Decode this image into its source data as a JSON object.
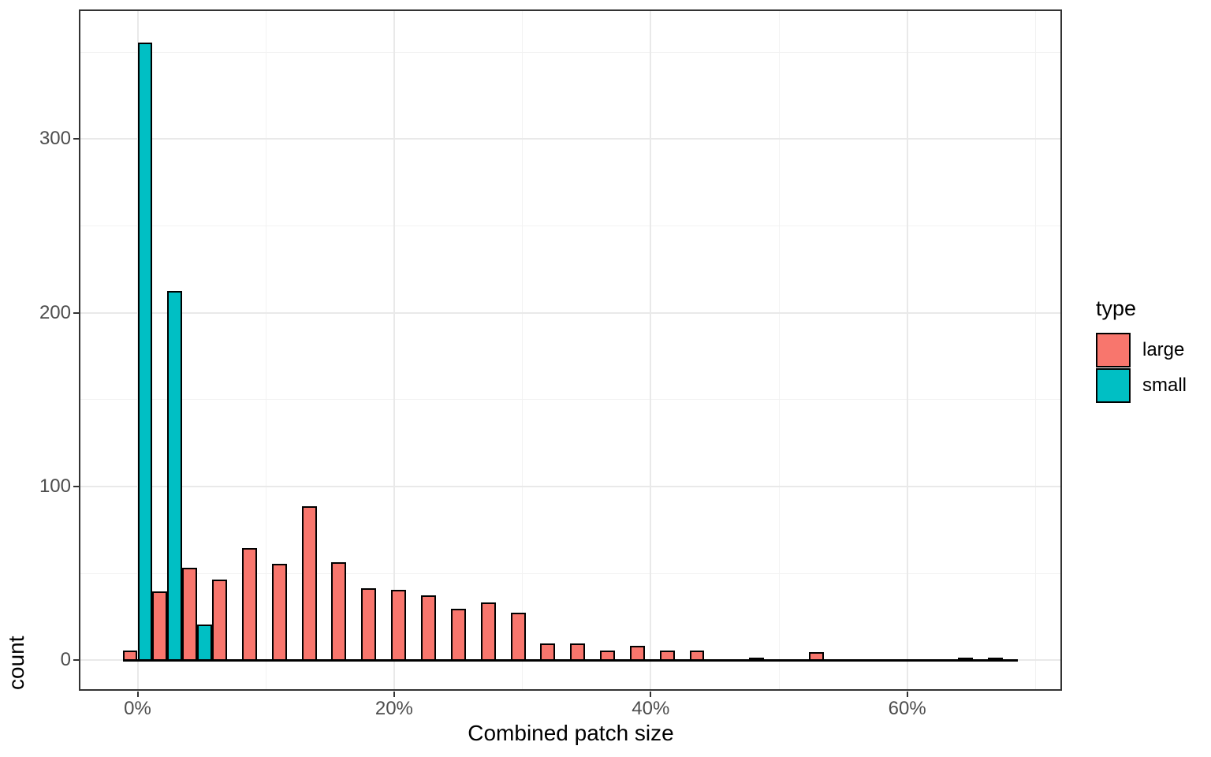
{
  "chart_data": {
    "type": "bar",
    "subtype": "dodged-histogram",
    "title": "",
    "xlabel": "Combined patch size",
    "ylabel": "count",
    "grid": "major+minor",
    "legend": {
      "title": "type",
      "position": "right",
      "entries": [
        {
          "label": "large",
          "color": "#F8766D"
        },
        {
          "label": "small",
          "color": "#00BFC4"
        }
      ]
    },
    "axes": {
      "x_ticks": [
        {
          "value": 0,
          "label": "0%"
        },
        {
          "value": 20,
          "label": "20%"
        },
        {
          "value": 40,
          "label": "40%"
        },
        {
          "value": 60,
          "label": "60%"
        }
      ],
      "x_minor_ticks": [
        10,
        30,
        50,
        70
      ],
      "y_ticks": [
        {
          "value": 0,
          "label": "0"
        },
        {
          "value": 100,
          "label": "100"
        },
        {
          "value": 200,
          "label": "200"
        },
        {
          "value": 300,
          "label": "300"
        }
      ],
      "y_minor_ticks": [
        50,
        150,
        250,
        350
      ],
      "xlim_pct": [
        -4.5,
        72.0
      ],
      "ylim_count": [
        -17,
        374
      ]
    },
    "bin_width_pct": 2.326,
    "bin_centers_pct": [
      0,
      2.33,
      4.65,
      6.98,
      9.3,
      11.63,
      13.96,
      16.28,
      18.61,
      20.93,
      23.26,
      25.59,
      27.91,
      30.24,
      32.56,
      34.89,
      37.22,
      39.54,
      41.87,
      44.19,
      46.52,
      48.85,
      51.17,
      53.5,
      55.82,
      58.15,
      60.48,
      62.8,
      65.13,
      67.45
    ],
    "series": [
      {
        "name": "large",
        "color": "#F8766D",
        "values": [
          5,
          39,
          53,
          46,
          64,
          55,
          88,
          56,
          41,
          40,
          37,
          29,
          33,
          27,
          9,
          9,
          5,
          8,
          5,
          5,
          0,
          1,
          0,
          4,
          0,
          0,
          0,
          0,
          1,
          1
        ]
      },
      {
        "name": "small",
        "color": "#00BFC4",
        "values": [
          355,
          212,
          20,
          0,
          0,
          0,
          0,
          0,
          0,
          0,
          0,
          0,
          0,
          0,
          0,
          0,
          0,
          0,
          0,
          0,
          0,
          0,
          0,
          0,
          0,
          0,
          0,
          0,
          0,
          0
        ]
      }
    ],
    "style": {
      "bar_outline": "#000000",
      "panel_border": "#333333",
      "grid_major": "#E9E9E9",
      "grid_minor": "#F2F2F2",
      "tick_color": "#333333",
      "tick_label_color": "#4D4D4D",
      "title_color": "#000000",
      "background": "#FFFFFF"
    }
  }
}
